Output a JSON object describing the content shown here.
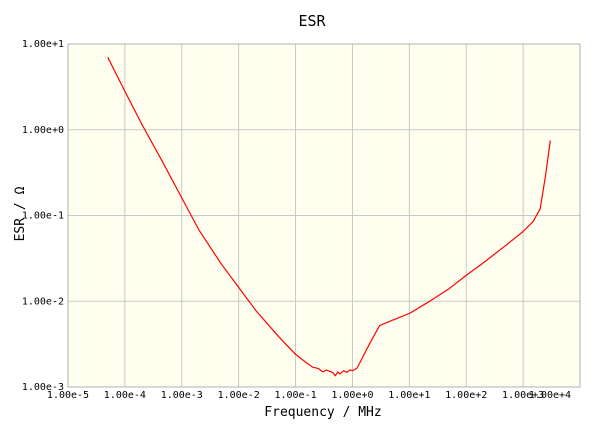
{
  "chart_data": {
    "type": "line",
    "title": "ESR",
    "xlabel": "Frequency / MHz",
    "ylabel": "ESR / Ω",
    "x_scale": "log",
    "y_scale": "log",
    "xlim": [
      1e-05,
      10000.0
    ],
    "ylim": [
      0.001,
      10.0
    ],
    "grid": true,
    "plot_background": "#fffff0",
    "grid_color": "#c8c8c8",
    "x_ticks": [
      {
        "value": 1e-05,
        "label": "1.00e-5"
      },
      {
        "value": 0.0001,
        "label": "1.00e-4"
      },
      {
        "value": 0.001,
        "label": "1.00e-3"
      },
      {
        "value": 0.01,
        "label": "1.00e-2"
      },
      {
        "value": 0.1,
        "label": "1.00e-1"
      },
      {
        "value": 1.0,
        "label": "1.00e+0"
      },
      {
        "value": 10.0,
        "label": "1.00e+1"
      },
      {
        "value": 100.0,
        "label": "1.00e+2"
      },
      {
        "value": 1000.0,
        "label": "1.00e+3"
      },
      {
        "value": 10000.0,
        "label": "1.00e+4"
      }
    ],
    "y_ticks": [
      {
        "value": 10.0,
        "label": "1.00e+1"
      },
      {
        "value": 1.0,
        "label": "1.00e+0"
      },
      {
        "value": 0.1,
        "label": "1.00e-1"
      },
      {
        "value": 0.01,
        "label": "1.00e-2"
      },
      {
        "value": 0.001,
        "label": "1.00e-3"
      }
    ],
    "series": [
      {
        "color": "#ff0000",
        "x": [
          5e-05,
          0.0001,
          0.0002,
          0.0005,
          0.001,
          0.002,
          0.005,
          0.01,
          0.02,
          0.05,
          0.1,
          0.15,
          0.2,
          0.25,
          0.3,
          0.35,
          0.4,
          0.45,
          0.5,
          0.55,
          0.6,
          0.7,
          0.8,
          0.9,
          1.0,
          1.2,
          1.5,
          2.0,
          3.0,
          5.0,
          10,
          20,
          50,
          100,
          200,
          500,
          1000,
          1500,
          2000,
          2500,
          3000
        ],
        "y": [
          7.0,
          2.8,
          1.15,
          0.38,
          0.16,
          0.068,
          0.027,
          0.0145,
          0.0078,
          0.0039,
          0.0024,
          0.00195,
          0.0017,
          0.00165,
          0.0015,
          0.00158,
          0.00152,
          0.00148,
          0.00135,
          0.0015,
          0.00142,
          0.00155,
          0.00148,
          0.00158,
          0.00155,
          0.00165,
          0.0022,
          0.0032,
          0.0052,
          0.006,
          0.0072,
          0.0095,
          0.014,
          0.02,
          0.028,
          0.045,
          0.065,
          0.085,
          0.12,
          0.3,
          0.75
        ]
      }
    ]
  }
}
